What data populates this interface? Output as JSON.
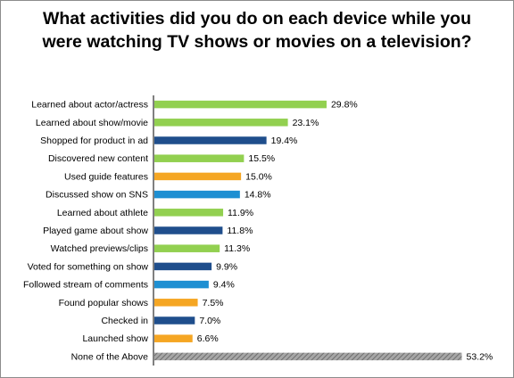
{
  "chart_data": {
    "type": "bar",
    "orientation": "horizontal",
    "title": "What activities did you do on each device while you were watching TV shows or movies on a television?",
    "categories": [
      "Learned about actor/actress",
      "Learned about show/movie",
      "Shopped for product in ad",
      "Discovered new content",
      "Used guide features",
      "Discussed show on SNS",
      "Learned about athlete",
      "Played game about show",
      "Watched previews/clips",
      "Voted for something on show",
      "Followed stream of comments",
      "Found popular shows",
      "Checked in",
      "Launched show",
      "None of the Above"
    ],
    "values": [
      29.8,
      23.1,
      19.4,
      15.5,
      15.0,
      14.8,
      11.9,
      11.8,
      11.3,
      9.9,
      9.4,
      7.5,
      7.0,
      6.6,
      53.2
    ],
    "labels": [
      "29.8%",
      "23.1%",
      "19.4%",
      "15.5%",
      "15.0%",
      "14.8%",
      "11.9%",
      "11.8%",
      "11.3%",
      "9.9%",
      "9.4%",
      "7.5%",
      "7.0%",
      "6.6%",
      "53.2%"
    ],
    "bar_colors": [
      "#92d050",
      "#92d050",
      "#1f4e8c",
      "#92d050",
      "#f5a623",
      "#1e8fd2",
      "#92d050",
      "#1f4e8c",
      "#92d050",
      "#1f4e8c",
      "#1e8fd2",
      "#f5a623",
      "#1f4e8c",
      "#f5a623",
      "#8c8c8c"
    ],
    "pattern_bars": [
      "None of the Above"
    ],
    "xlim": [
      0,
      60
    ],
    "grid": false,
    "legend": "none"
  }
}
